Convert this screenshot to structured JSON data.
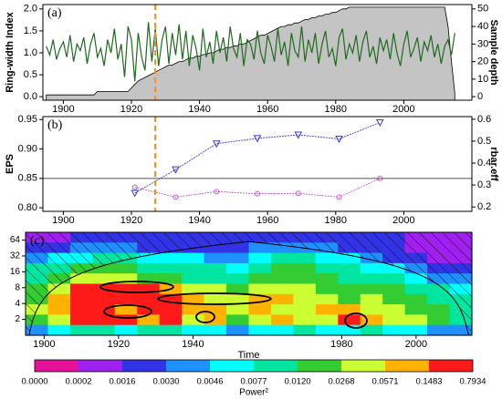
{
  "chart_data": [
    {
      "type": "line",
      "panel_label": "(a)",
      "x": [
        1895,
        1896,
        1897,
        1898,
        1899,
        1900,
        1901,
        1902,
        1903,
        1904,
        1905,
        1906,
        1907,
        1908,
        1909,
        1910,
        1911,
        1912,
        1913,
        1914,
        1915,
        1916,
        1917,
        1918,
        1919,
        1920,
        1921,
        1922,
        1923,
        1924,
        1925,
        1926,
        1927,
        1928,
        1929,
        1930,
        1931,
        1932,
        1933,
        1934,
        1935,
        1936,
        1937,
        1938,
        1939,
        1940,
        1941,
        1942,
        1943,
        1944,
        1945,
        1946,
        1947,
        1948,
        1949,
        1950,
        1951,
        1952,
        1953,
        1954,
        1955,
        1956,
        1957,
        1958,
        1959,
        1960,
        1961,
        1962,
        1963,
        1964,
        1965,
        1966,
        1967,
        1968,
        1969,
        1970,
        1971,
        1972,
        1973,
        1974,
        1975,
        1976,
        1977,
        1978,
        1979,
        1980,
        1981,
        1982,
        1983,
        1984,
        1985,
        1986,
        1987,
        1988,
        1989,
        1990,
        1991,
        1992,
        1993,
        1994,
        1995,
        1996,
        1997,
        1998,
        1999,
        2000,
        2001,
        2002,
        2003,
        2004,
        2005,
        2006,
        2007,
        2008,
        2009,
        2010,
        2011,
        2012,
        2013,
        2014,
        2015
      ],
      "xlim": [
        1894,
        2020
      ],
      "xticks": [
        1900,
        1920,
        1940,
        1960,
        1980,
        2000
      ],
      "ylim": [
        -0.08,
        2.1
      ],
      "yticks": [
        {
          "value": 0,
          "label": "0.0"
        },
        0.5,
        {
          "value": 1,
          "label": "1.0"
        },
        1.5,
        {
          "value": 2,
          "label": "2.0"
        }
      ],
      "y2lim": [
        -2,
        52.5
      ],
      "y2ticks": [
        0,
        10,
        20,
        30,
        40,
        50
      ],
      "y_label": "Ring-width Index",
      "y2_label": "Sample depth",
      "vline": 1927,
      "series": [
        {
          "color": "#c4c4c4",
          "axis": "y2",
          "fill": true,
          "values": [
            1,
            1,
            1,
            1,
            1,
            1,
            1,
            1,
            1,
            1,
            1,
            1,
            1,
            1,
            1,
            3,
            3,
            3,
            3,
            3,
            3,
            3,
            3,
            3,
            3,
            5,
            7,
            9,
            10,
            11,
            12,
            13,
            14,
            15,
            16,
            17,
            18,
            18,
            19,
            20,
            20,
            21,
            22,
            22,
            23,
            23,
            24,
            24,
            25,
            25,
            26,
            27,
            27,
            28,
            28,
            29,
            29,
            30,
            30,
            31,
            32,
            33,
            34,
            35,
            35,
            36,
            37,
            38,
            39,
            40,
            40,
            41,
            41,
            42,
            42,
            43,
            44,
            44,
            45,
            45,
            46,
            46,
            47,
            47,
            48,
            48,
            49,
            50,
            50,
            51,
            51,
            51,
            51,
            51,
            51,
            51,
            51,
            51,
            51,
            51,
            51,
            51,
            51,
            51,
            51,
            51,
            51,
            51,
            51,
            51,
            51,
            51,
            51,
            51,
            51,
            51,
            51,
            51,
            40,
            20,
            2
          ]
        },
        {
          "color": "#1e6b1e",
          "values": [
            1.15,
            0.95,
            1.3,
            0.85,
            1.1,
            1.25,
            0.9,
            1.4,
            0.8,
            1.2,
            1.05,
            1.35,
            0.75,
            1.2,
            1.45,
            0.9,
            1.1,
            0.7,
            1.3,
            1.0,
            1.55,
            0.85,
            1.2,
            0.45,
            1.6,
            1.3,
            0.35,
            1.45,
            0.9,
            0.6,
            1.7,
            0.8,
            1.55,
            0.7,
            1.3,
            1.6,
            0.75,
            1.45,
            0.95,
            1.65,
            0.85,
            1.5,
            0.7,
            1.4,
            1.1,
            0.6,
            1.55,
            0.9,
            1.25,
            0.75,
            1.5,
            1.0,
            1.35,
            0.8,
            1.6,
            1.1,
            0.9,
            1.45,
            0.7,
            1.3,
            1.2,
            0.85,
            1.5,
            1.0,
            0.75,
            1.4,
            1.15,
            0.8,
            1.55,
            0.95,
            1.25,
            0.7,
            1.45,
            1.05,
            0.9,
            1.6,
            0.8,
            1.3,
            1.0,
            1.45,
            0.75,
            1.2,
            1.5,
            0.9,
            1.1,
            0.7,
            1.35,
            1.55,
            0.85,
            1.2,
            1.0,
            1.4,
            0.8,
            1.25,
            1.5,
            0.9,
            1.15,
            0.75,
            1.35,
            1.05,
            1.3,
            0.85,
            1.45,
            1.0,
            0.7,
            1.2,
            1.5,
            0.9,
            1.1,
            1.35,
            0.8,
            1.25,
            1.05,
            1.4,
            0.9,
            1.2,
            0.75,
            1.15,
            1.3,
            0.95,
            1.45
          ]
        }
      ]
    },
    {
      "type": "line",
      "panel_label": "(b)",
      "x": [
        1921,
        1933,
        1945,
        1957,
        1969,
        1981,
        1993
      ],
      "xlim": [
        1894,
        2020
      ],
      "xticks": [
        1900,
        1920,
        1940,
        1960,
        1980,
        2000
      ],
      "ylim": [
        0.794,
        0.955
      ],
      "yticks": [
        {
          "value": 0.8,
          "label": "0.80"
        },
        0.85,
        {
          "value": 0.9,
          "label": "0.90"
        },
        0.95
      ],
      "y2lim": [
        0.18,
        0.612
      ],
      "y2ticks": [
        0.2,
        0.3,
        0.4,
        0.5,
        0.6
      ],
      "y_label": "EPS",
      "y2_label": "rbar.eff",
      "vline": 1927,
      "reference_line": 0.85,
      "series": [
        {
          "color": "#3b3bdb",
          "marker": "triangle-down",
          "values": [
            0.825,
            0.865,
            0.909,
            0.918,
            0.924,
            0.917,
            0.945
          ]
        },
        {
          "color": "#c05ad8",
          "marker": "circle",
          "axis": "y2",
          "values": [
            0.29,
            0.245,
            0.27,
            0.26,
            0.262,
            0.245,
            0.33
          ]
        }
      ]
    },
    {
      "type": "heatmap",
      "panel_label": "(c)",
      "xlim": [
        1895,
        2015
      ],
      "xticks": [
        1900,
        1920,
        1940,
        1980,
        2000
      ],
      "x_label": "Time",
      "ylim": [
        1,
        90
      ],
      "log_y": true,
      "yticks": [
        2,
        4,
        8,
        16,
        32,
        64
      ],
      "matrix": [
        [
          1,
          1,
          2,
          2,
          2,
          2,
          2,
          2,
          2,
          2,
          2,
          2,
          2,
          2,
          2,
          2,
          2,
          1,
          1,
          1
        ],
        [
          2,
          2,
          3,
          3,
          3,
          2,
          2,
          2,
          2,
          2,
          3,
          3,
          3,
          3,
          2,
          2,
          2,
          1,
          1,
          1
        ],
        [
          3,
          4,
          4,
          5,
          5,
          4,
          4,
          4,
          3,
          3,
          4,
          5,
          5,
          4,
          4,
          3,
          2,
          2,
          1,
          1
        ],
        [
          5,
          5,
          6,
          6,
          6,
          5,
          5,
          5,
          5,
          4,
          5,
          6,
          6,
          5,
          5,
          4,
          4,
          3,
          2,
          2
        ],
        [
          5,
          6,
          7,
          7,
          7,
          6,
          6,
          5,
          5,
          5,
          6,
          6,
          6,
          6,
          5,
          5,
          5,
          4,
          3,
          3
        ],
        [
          6,
          7,
          9,
          9,
          9,
          9,
          8,
          7,
          7,
          6,
          7,
          7,
          7,
          6,
          6,
          6,
          6,
          5,
          5,
          4
        ],
        [
          6,
          8,
          9,
          9,
          9,
          9,
          9,
          8,
          7,
          7,
          8,
          8,
          7,
          7,
          6,
          7,
          6,
          6,
          5,
          5
        ],
        [
          7,
          8,
          9,
          9,
          8,
          9,
          9,
          8,
          8,
          7,
          8,
          7,
          7,
          8,
          8,
          7,
          7,
          6,
          6,
          5
        ],
        [
          6,
          7,
          9,
          9,
          9,
          8,
          9,
          7,
          8,
          6,
          7,
          8,
          7,
          7,
          9,
          8,
          7,
          7,
          6,
          5
        ],
        [
          3,
          4,
          5,
          5,
          4,
          5,
          5,
          4,
          4,
          3,
          4,
          4,
          5,
          4,
          4,
          5,
          4,
          4,
          3,
          3
        ]
      ],
      "colorbar": {
        "label": "Power²",
        "colors": [
          "#e6119b",
          "#a020f0",
          "#3333e6",
          "#1e90ff",
          "#00ffff",
          "#00e6a0",
          "#33cc33",
          "#ccff33",
          "#ffb300",
          "#ff1a1a"
        ],
        "labels": [
          "0.0000",
          "0.0002",
          "0.0016",
          "0.0030",
          "0.0046",
          "0.0077",
          "0.0120",
          "0.0268",
          "0.0571",
          "0.1483",
          "0.7934"
        ]
      }
    }
  ]
}
